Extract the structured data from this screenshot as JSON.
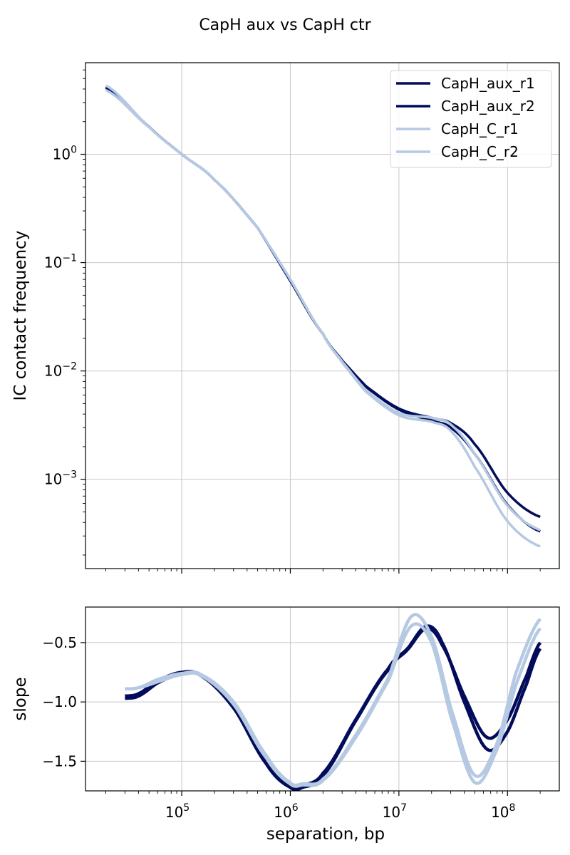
{
  "chart_data": [
    {
      "type": "line",
      "title": "CapH aux vs CapH ctr",
      "xlabel": "",
      "ylabel": "IC contact frequency",
      "xscale": "log",
      "yscale": "log",
      "xlim": [
        13000,
        300000000
      ],
      "ylim": [
        0.00015,
        7
      ],
      "yticks": [
        {
          "value": 1,
          "base": "10",
          "exp": "0"
        },
        {
          "value": 0.1,
          "base": "10",
          "exp": "−1"
        },
        {
          "value": 0.01,
          "base": "10",
          "exp": "−2"
        },
        {
          "value": 0.001,
          "base": "10",
          "exp": "−3"
        }
      ],
      "grid": true,
      "legend_position": "top-right",
      "series": [
        {
          "name": "CapH_aux_r1",
          "color": "#020c5a",
          "x": [
            20000,
            50000,
            100000,
            200000,
            500000,
            1000000,
            2000000,
            3000000,
            5000000,
            10000000,
            20000000,
            30000000,
            50000000,
            100000000,
            200000000
          ],
          "y": [
            4.2,
            1.8,
            1.0,
            0.58,
            0.21,
            0.068,
            0.022,
            0.0125,
            0.0072,
            0.0045,
            0.0037,
            0.0033,
            0.0021,
            0.00075,
            0.00045
          ]
        },
        {
          "name": "CapH_aux_r2",
          "color": "#020c5a",
          "x": [
            20000,
            50000,
            100000,
            200000,
            500000,
            1000000,
            2000000,
            3000000,
            5000000,
            10000000,
            20000000,
            30000000,
            50000000,
            100000000,
            200000000
          ],
          "y": [
            4.1,
            1.8,
            1.0,
            0.58,
            0.21,
            0.068,
            0.022,
            0.0125,
            0.0071,
            0.0044,
            0.0035,
            0.003,
            0.0017,
            0.00058,
            0.00033
          ]
        },
        {
          "name": "CapH_C_r1",
          "color": "#b5c9e2",
          "x": [
            20000,
            50000,
            100000,
            200000,
            500000,
            1000000,
            2000000,
            3000000,
            5000000,
            10000000,
            20000000,
            30000000,
            50000000,
            100000000,
            200000000
          ],
          "y": [
            4.3,
            1.8,
            1.0,
            0.58,
            0.21,
            0.07,
            0.022,
            0.0122,
            0.0066,
            0.0041,
            0.0037,
            0.0032,
            0.0017,
            0.00057,
            0.00034
          ]
        },
        {
          "name": "CapH_C_r2",
          "color": "#b5c9e2",
          "x": [
            20000,
            50000,
            100000,
            200000,
            500000,
            1000000,
            2000000,
            3000000,
            5000000,
            10000000,
            20000000,
            30000000,
            50000000,
            100000000,
            200000000
          ],
          "y": [
            3.9,
            1.78,
            1.0,
            0.58,
            0.21,
            0.07,
            0.022,
            0.012,
            0.0064,
            0.0039,
            0.0034,
            0.0028,
            0.0013,
            0.00041,
            0.00024
          ]
        }
      ]
    },
    {
      "type": "line",
      "title": "",
      "xlabel": "separation, bp",
      "ylabel": "slope",
      "xscale": "log",
      "yscale": "linear",
      "xlim": [
        13000,
        300000000
      ],
      "ylim": [
        -1.75,
        -0.2
      ],
      "xticks": [
        {
          "value": 100000,
          "base": "10",
          "exp": "5"
        },
        {
          "value": 1000000,
          "base": "10",
          "exp": "6"
        },
        {
          "value": 10000000,
          "base": "10",
          "exp": "7"
        },
        {
          "value": 100000000,
          "base": "10",
          "exp": "8"
        }
      ],
      "yticks": [
        {
          "value": -0.5,
          "label": "−0.5"
        },
        {
          "value": -1.0,
          "label": "−1.0"
        },
        {
          "value": -1.5,
          "label": "−1.5"
        }
      ],
      "grid": true,
      "series": [
        {
          "name": "CapH_aux_r1",
          "color": "#020c5a",
          "x": [
            30000,
            40000,
            60000,
            100000,
            150000,
            300000,
            600000,
            1000000,
            1300000,
            2000000,
            4000000,
            8000000,
            12000000,
            18000000,
            25000000,
            40000000,
            65000000,
            100000000,
            150000000,
            200000000
          ],
          "y": [
            -0.95,
            -0.93,
            -0.82,
            -0.75,
            -0.78,
            -1.05,
            -1.5,
            -1.7,
            -1.7,
            -1.6,
            -1.15,
            -0.72,
            -0.55,
            -0.36,
            -0.5,
            -1.0,
            -1.4,
            -1.25,
            -0.85,
            -0.55
          ]
        },
        {
          "name": "CapH_aux_r2",
          "color": "#020c5a",
          "x": [
            30000,
            40000,
            60000,
            100000,
            150000,
            300000,
            600000,
            1000000,
            1300000,
            2000000,
            4000000,
            8000000,
            12000000,
            18000000,
            25000000,
            40000000,
            65000000,
            100000000,
            150000000,
            200000000
          ],
          "y": [
            -0.97,
            -0.95,
            -0.84,
            -0.76,
            -0.78,
            -1.05,
            -1.52,
            -1.72,
            -1.72,
            -1.62,
            -1.16,
            -0.73,
            -0.56,
            -0.38,
            -0.52,
            -0.95,
            -1.3,
            -1.15,
            -0.78,
            -0.5
          ]
        },
        {
          "name": "CapH_C_r1",
          "color": "#b5c9e2",
          "x": [
            30000,
            40000,
            60000,
            100000,
            150000,
            300000,
            600000,
            1000000,
            1300000,
            2000000,
            4000000,
            8000000,
            13000000,
            20000000,
            30000000,
            50000000,
            80000000,
            120000000,
            200000000
          ],
          "y": [
            -0.89,
            -0.88,
            -0.81,
            -0.76,
            -0.77,
            -1.0,
            -1.45,
            -1.68,
            -1.69,
            -1.65,
            -1.28,
            -0.8,
            -0.28,
            -0.45,
            -1.05,
            -1.62,
            -1.35,
            -0.75,
            -0.3
          ]
        },
        {
          "name": "CapH_C_r2",
          "color": "#b5c9e2",
          "x": [
            30000,
            40000,
            60000,
            100000,
            150000,
            300000,
            600000,
            1000000,
            1300000,
            2000000,
            4000000,
            8000000,
            13000000,
            20000000,
            30000000,
            50000000,
            80000000,
            120000000,
            200000000
          ],
          "y": [
            -0.89,
            -0.88,
            -0.83,
            -0.77,
            -0.78,
            -1.02,
            -1.47,
            -1.69,
            -1.7,
            -1.66,
            -1.3,
            -0.82,
            -0.36,
            -0.5,
            -1.12,
            -1.68,
            -1.4,
            -0.85,
            -0.38
          ]
        }
      ]
    }
  ]
}
